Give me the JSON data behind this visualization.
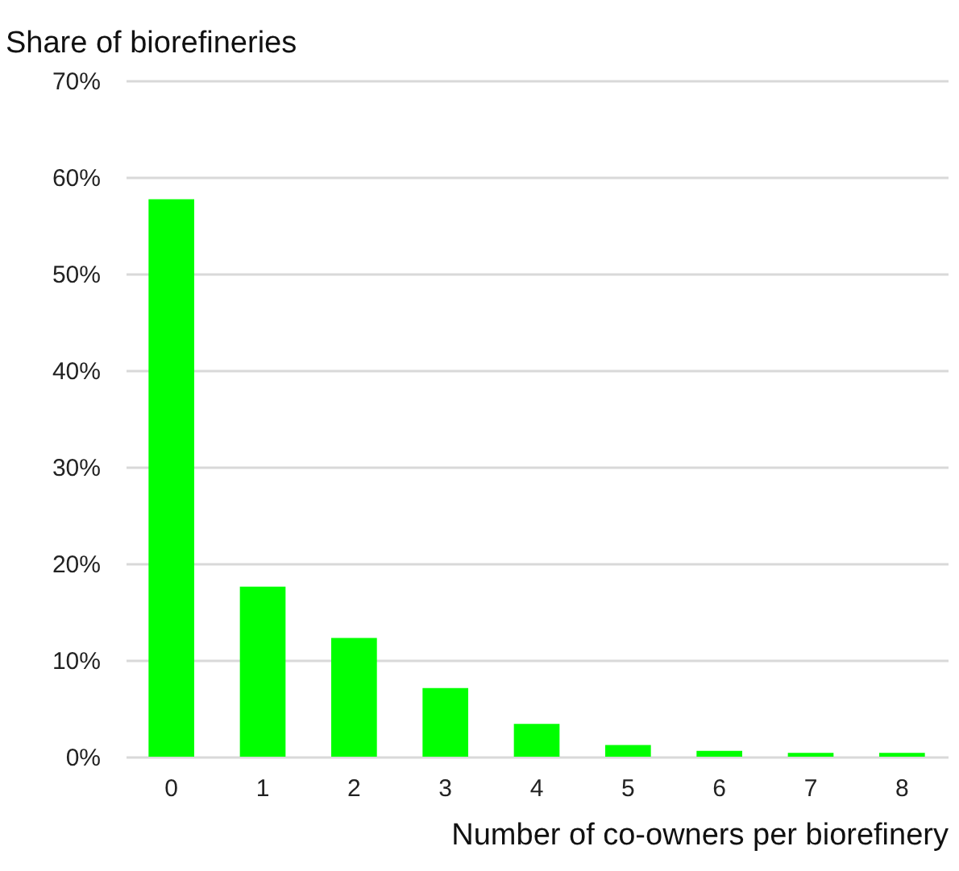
{
  "chart_data": {
    "type": "bar",
    "ylabel": "Share of biorefineries",
    "xlabel": "Number of co-owners per biorefinery",
    "categories": [
      "0",
      "1",
      "2",
      "3",
      "4",
      "5",
      "6",
      "7",
      "8"
    ],
    "values": [
      57.7,
      17.6,
      12.3,
      7.1,
      3.4,
      1.2,
      0.6,
      0.4,
      0.4
    ],
    "color": "#00ff00",
    "ylim": [
      0,
      70
    ],
    "yticks": [
      {
        "value": 0,
        "label": "0%"
      },
      {
        "value": 10,
        "label": "10%"
      },
      {
        "value": 20,
        "label": "20%"
      },
      {
        "value": 30,
        "label": "30%"
      },
      {
        "value": 40,
        "label": "40%"
      },
      {
        "value": 50,
        "label": "50%"
      },
      {
        "value": 60,
        "label": "60%"
      },
      {
        "value": 70,
        "label": "70%"
      }
    ],
    "grid": "y"
  }
}
